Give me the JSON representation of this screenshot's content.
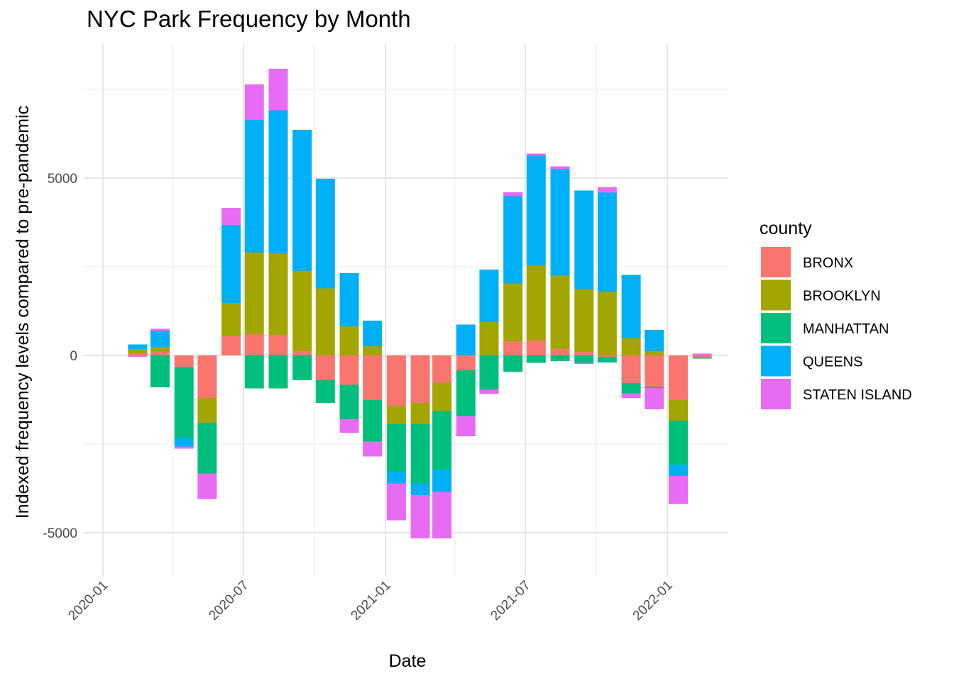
{
  "chart_data": {
    "type": "bar",
    "stacked": true,
    "title": "NYC Park Frequency by Month",
    "xlabel": "Date",
    "ylabel": "Indexed frequency levels compared to pre-pandemic",
    "x_tick_labels": [
      "2020-01",
      "2020-07",
      "2021-01",
      "2021-07",
      "2022-01"
    ],
    "y_tick_labels": [
      "-5000",
      "0",
      "5000"
    ],
    "ylim": [
      -6200,
      8600
    ],
    "grid": true,
    "legend": {
      "title": "county",
      "position": "right"
    },
    "categories": [
      "2020-02",
      "2020-03",
      "2020-04",
      "2020-05",
      "2020-06",
      "2020-07",
      "2020-08",
      "2020-09",
      "2020-10",
      "2020-11",
      "2020-12",
      "2021-01",
      "2021-02",
      "2021-03",
      "2021-04",
      "2021-05",
      "2021-06",
      "2021-07",
      "2021-08",
      "2021-09",
      "2021-10",
      "2021-11",
      "2021-12",
      "2022-01",
      "2022-02"
    ],
    "series": [
      {
        "name": "BRONX",
        "color": "#F8766D",
        "values": [
          60,
          110,
          -330,
          -1200,
          540,
          600,
          580,
          120,
          -690,
          -830,
          -1260,
          -1420,
          -1340,
          -770,
          -420,
          0,
          390,
          420,
          180,
          100,
          -50,
          -780,
          -890,
          -1260,
          -60
        ]
      },
      {
        "name": "BROOKLYN",
        "color": "#A3A500",
        "values": [
          120,
          130,
          0,
          -700,
          940,
          2300,
          2300,
          2260,
          1890,
          820,
          260,
          -520,
          -600,
          -800,
          0,
          940,
          1640,
          2120,
          2070,
          1770,
          1800,
          490,
          120,
          -580,
          0
        ]
      },
      {
        "name": "MANHATTAN",
        "color": "#00BF7D",
        "values": [
          0,
          -900,
          -1990,
          -1430,
          0,
          -930,
          -930,
          -700,
          -650,
          -970,
          -1170,
          -1330,
          -1670,
          -1650,
          -1290,
          -960,
          -460,
          -210,
          -160,
          -210,
          -150,
          -290,
          -30,
          -1240,
          -30
        ]
      },
      {
        "name": "QUEENS",
        "color": "#00B0F6",
        "values": [
          130,
          450,
          -250,
          0,
          2200,
          3740,
          4030,
          3980,
          3090,
          1500,
          720,
          -340,
          -330,
          -620,
          870,
          1480,
          2460,
          3090,
          3010,
          2780,
          2790,
          1780,
          600,
          -320,
          0
        ]
      },
      {
        "name": "STATEN ISLAND",
        "color": "#E76BF3",
        "values": [
          -40,
          60,
          -60,
          -720,
          480,
          1000,
          1170,
          0,
          0,
          -380,
          -420,
          -1040,
          -1220,
          -1320,
          -570,
          -130,
          110,
          60,
          70,
          -30,
          150,
          -130,
          -600,
          -790,
          50
        ]
      }
    ]
  }
}
